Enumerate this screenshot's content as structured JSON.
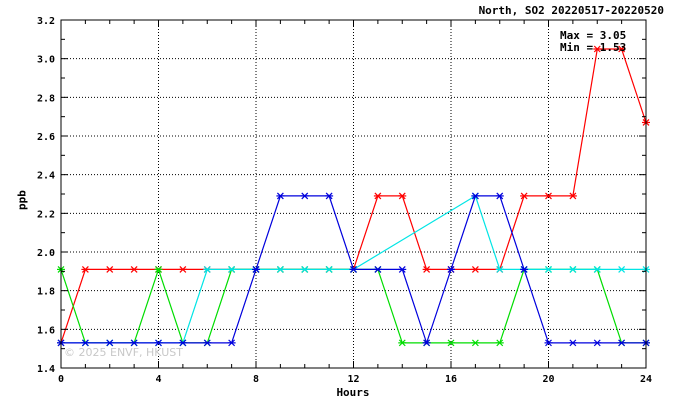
{
  "chart_data": {
    "type": "line",
    "title": "North, SO2 20220517-20220520",
    "xlabel": "Hours",
    "ylabel": "ppb",
    "xlim": [
      0,
      24
    ],
    "ylim": [
      1.4,
      3.2
    ],
    "x_ticks": [
      0,
      4,
      8,
      12,
      16,
      20,
      24
    ],
    "y_ticks": [
      1.4,
      1.6,
      1.8,
      2.0,
      2.2,
      2.4,
      2.6,
      2.8,
      3.0,
      3.2
    ],
    "grid": true,
    "annotations": {
      "max": "Max = 3.05",
      "min": "Min = 1.53"
    },
    "watermark": "© 2025 ENVF, HKUST",
    "x": [
      0,
      1,
      2,
      3,
      4,
      5,
      6,
      7,
      8,
      9,
      10,
      11,
      12,
      13,
      14,
      15,
      16,
      17,
      18,
      19,
      20,
      21,
      22,
      23,
      24
    ],
    "series": [
      {
        "color": "#ff0000",
        "values": [
          1.53,
          1.91,
          1.91,
          1.91,
          1.91,
          1.91,
          1.91,
          1.91,
          1.91,
          1.91,
          1.91,
          1.91,
          1.91,
          2.29,
          2.29,
          1.91,
          1.91,
          1.91,
          1.91,
          2.29,
          2.29,
          2.29,
          3.05,
          3.05,
          2.67
        ]
      },
      {
        "color": "#00dd00",
        "values": [
          1.91,
          1.53,
          1.53,
          1.53,
          1.91,
          1.53,
          1.53,
          1.91,
          1.91,
          1.91,
          1.91,
          1.91,
          1.91,
          1.91,
          1.53,
          1.53,
          1.53,
          1.53,
          1.53,
          1.91,
          1.91,
          1.91,
          1.91,
          1.53,
          1.53
        ]
      },
      {
        "color": "#00e5e5",
        "values": [
          1.53,
          1.53,
          1.53,
          1.53,
          1.53,
          1.53,
          1.91,
          1.91,
          1.91,
          1.91,
          1.91,
          1.91,
          1.91,
          null,
          null,
          null,
          null,
          2.29,
          1.91,
          1.91,
          1.91,
          1.91,
          1.91,
          1.91,
          1.91
        ]
      },
      {
        "color": "#0000dd",
        "values": [
          1.53,
          1.53,
          1.53,
          1.53,
          1.53,
          1.53,
          1.53,
          1.53,
          1.91,
          2.29,
          2.29,
          2.29,
          1.91,
          1.91,
          1.91,
          1.53,
          1.91,
          2.29,
          2.29,
          1.91,
          1.53,
          1.53,
          1.53,
          1.53,
          1.53
        ]
      }
    ]
  }
}
